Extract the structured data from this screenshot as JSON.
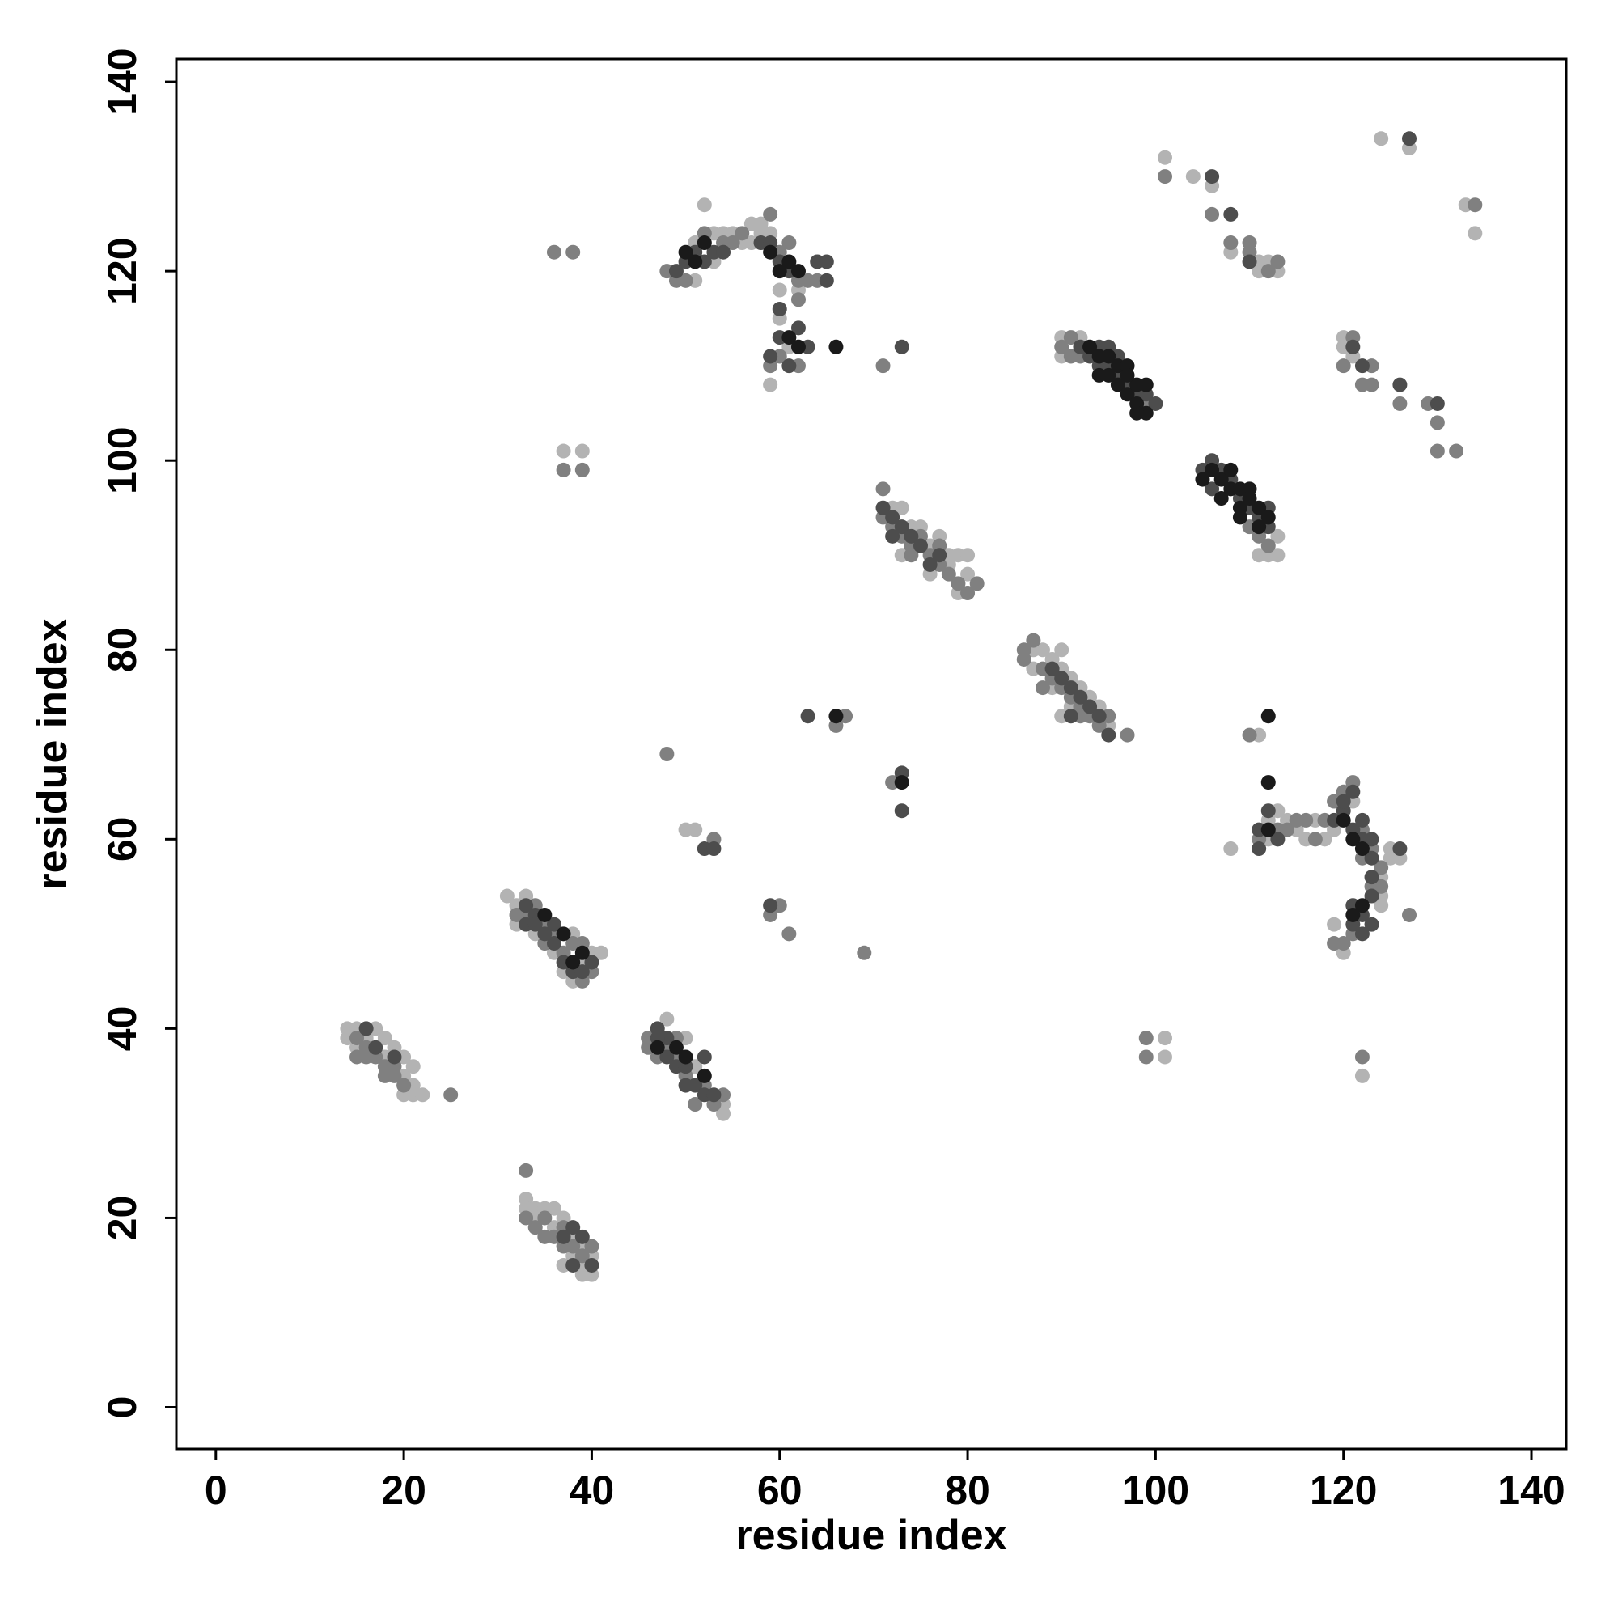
{
  "chart_data": {
    "type": "scatter",
    "xlabel": "residue index",
    "ylabel": "residue index",
    "xlim": [
      -4.2,
      143.7
    ],
    "ylim": [
      -4.4,
      142.4
    ],
    "xticks": [
      0,
      20,
      40,
      60,
      80,
      100,
      120,
      140
    ],
    "yticks": [
      0,
      20,
      40,
      60,
      80,
      100,
      120,
      140
    ],
    "series": [
      {
        "color": "#b3b3b3",
        "x": [
          14,
          15,
          16,
          17,
          18,
          18,
          19,
          20,
          20,
          21,
          21,
          20,
          21,
          22,
          14,
          15,
          33,
          33,
          34,
          35,
          36,
          34,
          36,
          37,
          38,
          39,
          39,
          39,
          40,
          40,
          37,
          38,
          31,
          32,
          33,
          32,
          34,
          36,
          38,
          39,
          40,
          41,
          38,
          37,
          48,
          50,
          54,
          54,
          51,
          52,
          53,
          54,
          55,
          56,
          57,
          58,
          58,
          59,
          51,
          51,
          60,
          60,
          62,
          59,
          61,
          57,
          53,
          72,
          73,
          74,
          75,
          76,
          77,
          78,
          79,
          80,
          79,
          73,
          76,
          78,
          80,
          87,
          88,
          89,
          90,
          90,
          91,
          92,
          93,
          94,
          95,
          90,
          87,
          89,
          91,
          90,
          90,
          92,
          111,
          112,
          113,
          113,
          101,
          104,
          106,
          108,
          111,
          111,
          112,
          113,
          124,
          127,
          134,
          133,
          120,
          121,
          120,
          108,
          112,
          113,
          114,
          115,
          116,
          117,
          118,
          119,
          125,
          125,
          124,
          124,
          124,
          119,
          120,
          121,
          126,
          112,
          37,
          39,
          50,
          51,
          101,
          101,
          111,
          122
        ],
        "y": [
          40,
          40,
          39,
          40,
          39,
          37,
          38,
          37,
          35,
          36,
          34,
          33,
          33,
          33,
          39,
          38,
          22,
          21,
          21,
          21,
          21,
          20,
          19,
          20,
          18,
          17,
          15,
          14,
          14,
          16,
          15,
          16,
          54,
          53,
          54,
          51,
          50,
          48,
          50,
          47,
          48,
          48,
          45,
          46,
          41,
          39,
          32,
          31,
          36,
          127,
          124,
          124,
          124,
          123,
          125,
          125,
          124,
          124,
          119,
          123,
          118,
          115,
          118,
          108,
          112,
          123,
          121,
          95,
          95,
          93,
          93,
          91,
          92,
          90,
          90,
          88,
          86,
          90,
          88,
          89,
          90,
          80,
          80,
          79,
          78,
          80,
          77,
          76,
          75,
          74,
          72,
          73,
          78,
          76,
          74,
          113,
          111,
          113,
          90,
          90,
          90,
          92,
          132,
          130,
          129,
          122,
          120,
          121,
          121,
          120,
          134,
          133,
          124,
          127,
          113,
          111,
          112,
          59,
          62,
          63,
          62,
          61,
          60,
          62,
          60,
          61,
          59,
          58,
          56,
          54,
          53,
          51,
          48,
          64,
          58,
          60,
          101,
          101,
          61,
          61,
          39,
          37,
          71,
          35
        ]
      },
      {
        "color": "#808080",
        "x": [
          15,
          16,
          17,
          18,
          19,
          20,
          16,
          19,
          25,
          15,
          18,
          33,
          33,
          34,
          35,
          36,
          37,
          38,
          39,
          40,
          35,
          37,
          32,
          33,
          34,
          35,
          36,
          37,
          39,
          40,
          35,
          38,
          39,
          46,
          46,
          48,
          49,
          50,
          52,
          53,
          51,
          47,
          49,
          54,
          48,
          49,
          50,
          52,
          55,
          56,
          59,
          60,
          61,
          62,
          63,
          64,
          62,
          60,
          59,
          62,
          54,
          71,
          71,
          72,
          73,
          74,
          75,
          76,
          77,
          78,
          79,
          80,
          81,
          74,
          77,
          86,
          86,
          87,
          88,
          89,
          90,
          91,
          92,
          93,
          94,
          95,
          97,
          88,
          92,
          90,
          91,
          91,
          92,
          99,
          110,
          111,
          112,
          101,
          106,
          108,
          110,
          110,
          112,
          113,
          134,
          120,
          121,
          122,
          123,
          126,
          129,
          130,
          130,
          132,
          123,
          111,
          113,
          114,
          115,
          116,
          117,
          118,
          119,
          120,
          121,
          122,
          123,
          124,
          124,
          123,
          121,
          120,
          119,
          127,
          122,
          36,
          38,
          37,
          39,
          48,
          53,
          60,
          59,
          61,
          67,
          66,
          69,
          71,
          72,
          99,
          99,
          110,
          122
        ],
        "y": [
          39,
          38,
          37,
          36,
          35,
          34,
          37,
          36,
          33,
          37,
          35,
          25,
          20,
          19,
          20,
          18,
          19,
          17,
          16,
          17,
          18,
          17,
          52,
          52,
          53,
          49,
          50,
          48,
          45,
          46,
          51,
          49,
          49,
          39,
          38,
          38,
          37,
          35,
          34,
          32,
          32,
          37,
          39,
          33,
          120,
          119,
          119,
          124,
          123,
          124,
          126,
          122,
          123,
          119,
          119,
          119,
          117,
          111,
          110,
          110,
          123,
          97,
          94,
          93,
          92,
          91,
          92,
          90,
          89,
          88,
          87,
          86,
          87,
          90,
          91,
          80,
          79,
          81,
          78,
          77,
          76,
          75,
          74,
          73,
          72,
          73,
          71,
          76,
          73,
          112,
          113,
          111,
          111,
          106,
          93,
          92,
          91,
          130,
          126,
          123,
          123,
          122,
          120,
          121,
          127,
          110,
          113,
          108,
          108,
          106,
          106,
          104,
          101,
          101,
          110,
          60,
          61,
          61,
          62,
          62,
          60,
          62,
          64,
          65,
          66,
          61,
          59,
          57,
          55,
          55,
          50,
          49,
          49,
          52,
          58,
          122,
          122,
          99,
          99,
          69,
          60,
          53,
          52,
          50,
          73,
          72,
          48,
          110,
          66,
          39,
          37,
          71,
          37
        ]
      },
      {
        "color": "#4d4d4d",
        "x": [
          16,
          17,
          19,
          37,
          38,
          39,
          40,
          38,
          33,
          34,
          35,
          36,
          37,
          38,
          39,
          40,
          34,
          33,
          36,
          47,
          48,
          48,
          49,
          50,
          51,
          52,
          53,
          52,
          47,
          50,
          49,
          50,
          51,
          52,
          53,
          58,
          59,
          60,
          61,
          60,
          60,
          62,
          59,
          61,
          63,
          64,
          65,
          65,
          54,
          71,
          72,
          73,
          74,
          75,
          76,
          77,
          72,
          89,
          90,
          91,
          92,
          93,
          94,
          95,
          91,
          92,
          93,
          94,
          95,
          95,
          96,
          97,
          98,
          99,
          96,
          94,
          100,
          106,
          107,
          105,
          108,
          109,
          110,
          111,
          112,
          112,
          106,
          106,
          108,
          110,
          127,
          121,
          122,
          126,
          130,
          111,
          111,
          112,
          113,
          119,
          120,
          121,
          122,
          122,
          123,
          123,
          123,
          123,
          122,
          122,
          121,
          121,
          126,
          120,
          121,
          123,
          52,
          53,
          59,
          63,
          73,
          73,
          73
        ],
        "y": [
          40,
          38,
          37,
          18,
          19,
          18,
          15,
          15,
          51,
          52,
          50,
          49,
          47,
          46,
          46,
          47,
          51,
          53,
          51,
          40,
          39,
          37,
          36,
          36,
          34,
          33,
          33,
          37,
          39,
          34,
          120,
          121,
          122,
          121,
          122,
          123,
          123,
          121,
          120,
          116,
          113,
          114,
          111,
          110,
          112,
          121,
          121,
          119,
          122,
          95,
          94,
          93,
          92,
          91,
          89,
          90,
          92,
          78,
          77,
          76,
          75,
          74,
          73,
          71,
          73,
          112,
          111,
          112,
          112,
          110,
          109,
          108,
          107,
          107,
          111,
          110,
          106,
          100,
          99,
          99,
          98,
          96,
          95,
          94,
          95,
          93,
          97,
          130,
          126,
          121,
          134,
          112,
          110,
          108,
          106,
          61,
          59,
          63,
          60,
          62,
          63,
          61,
          60,
          62,
          60,
          58,
          56,
          54,
          52,
          50,
          51,
          53,
          59,
          64,
          65,
          51,
          59,
          59,
          53,
          73,
          112,
          67,
          63
        ]
      },
      {
        "color": "#1a1a1a",
        "x": [
          35,
          37,
          38,
          39,
          47,
          50,
          52,
          49,
          50,
          51,
          52,
          59,
          60,
          61,
          62,
          61,
          66,
          62,
          93,
          94,
          95,
          94,
          95,
          96,
          96,
          97,
          97,
          98,
          98,
          99,
          99,
          98,
          97,
          105,
          106,
          107,
          107,
          108,
          108,
          109,
          109,
          110,
          110,
          111,
          109,
          111,
          112,
          120,
          121,
          122,
          121,
          122,
          112,
          112,
          112,
          66,
          73
        ],
        "y": [
          52,
          50,
          47,
          48,
          38,
          37,
          35,
          38,
          122,
          121,
          123,
          122,
          120,
          121,
          120,
          113,
          112,
          112,
          112,
          111,
          111,
          109,
          109,
          110,
          108,
          110,
          107,
          108,
          106,
          108,
          105,
          105,
          109,
          98,
          99,
          98,
          96,
          99,
          97,
          97,
          95,
          97,
          96,
          95,
          94,
          93,
          94,
          62,
          60,
          59,
          52,
          53,
          66,
          73,
          61,
          73,
          66
        ]
      }
    ]
  }
}
